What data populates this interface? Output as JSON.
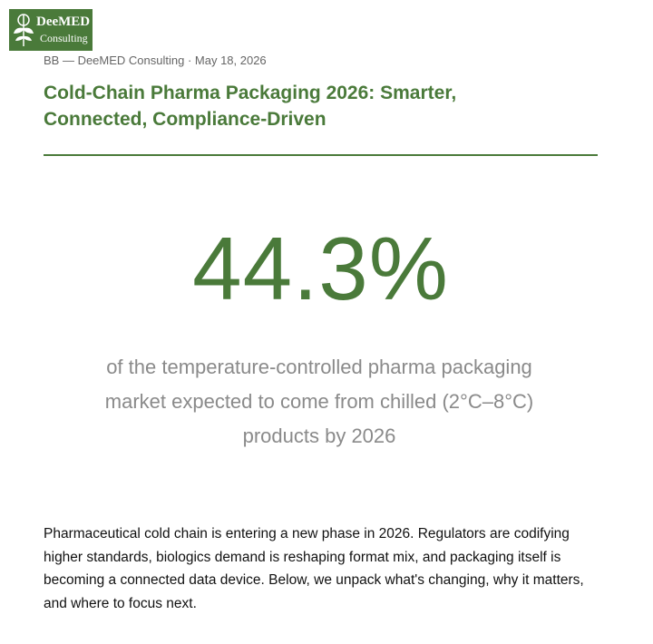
{
  "logo": {
    "name": "DeeMED",
    "tagline": "Consulting"
  },
  "byline": "BB — DeeMED Consulting · May 18, 2026",
  "title": "Cold-Chain Pharma Packaging 2026: Smarter, Connected, Compliance-Driven",
  "stat": {
    "value": "44.3%",
    "caption": "of the temperature-controlled pharma packaging market expected to come from chilled (2°C–8°C) products by 2026"
  },
  "body": "Pharmaceutical cold chain is entering a new phase in 2026. Regulators are codifying higher standards, biologics demand is reshaping format mix, and packaging itself is becoming a connected data device. Below, we unpack what's changing, why it matters, and where to focus next."
}
